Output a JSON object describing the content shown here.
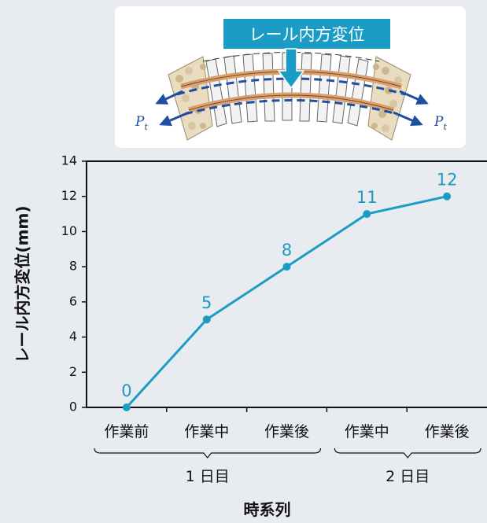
{
  "inset": {
    "callout": "レール内方変位",
    "force_symbol_main": "P",
    "force_symbol_sub": "t",
    "colors": {
      "callout_bg": "#1a9cc4",
      "arrow": "#1f4fa0",
      "rail": "#d9a070"
    }
  },
  "chart_data": {
    "type": "line",
    "categories": [
      "作業前",
      "作業中",
      "作業後",
      "作業中",
      "作業後"
    ],
    "series": [
      {
        "values": [
          0,
          5,
          8,
          11,
          12
        ],
        "color": "#1a9cc4"
      }
    ],
    "data_labels": [
      "0",
      "5",
      "8",
      "11",
      "12"
    ],
    "ylabel": "レール内方変位(mm)",
    "xlabel": "時系列",
    "ylim": [
      0,
      14
    ],
    "yticks": [
      0,
      2,
      4,
      6,
      8,
      10,
      12,
      14
    ],
    "ytick_labels": [
      "0",
      "2",
      "4",
      "6",
      "8",
      "10",
      "12",
      "14"
    ],
    "groups": [
      {
        "label": "1 日目",
        "categories": [
          0,
          1,
          2
        ]
      },
      {
        "label": "2 日目",
        "categories": [
          3,
          4
        ]
      }
    ],
    "grid": false
  }
}
